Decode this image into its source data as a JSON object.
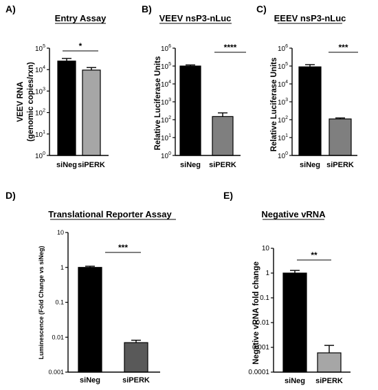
{
  "chart_data": [
    {
      "type": "bar",
      "panel": "A)",
      "title": "Entry Assay",
      "ylabel": [
        "VEEV RNA",
        "(genomic copies/rxn)"
      ],
      "categories": [
        "siNeg",
        "siPERK"
      ],
      "values": [
        25000,
        9500
      ],
      "errors_upper": [
        33000,
        12500
      ],
      "bar_colors": [
        "#000000",
        "#a6a6a6"
      ],
      "yscale": "log",
      "ylim_exp": [
        0,
        5
      ],
      "ytick_style": "power",
      "significance": "*",
      "grid": false
    },
    {
      "type": "bar",
      "panel": "B)",
      "title": "VEEV nsP3-nLuc",
      "ylabel": [
        "Relative Luciferase Units"
      ],
      "categories": [
        "siNeg",
        "siPERK"
      ],
      "values": [
        100000,
        150
      ],
      "errors_upper": [
        115000,
        240
      ],
      "bar_colors": [
        "#000000",
        "#7f7f7f"
      ],
      "yscale": "log",
      "ylim_exp": [
        0,
        6
      ],
      "ytick_style": "power",
      "significance": "****",
      "grid": false
    },
    {
      "type": "bar",
      "panel": "C)",
      "title": "EEEV nsP3-nLuc",
      "ylabel": [
        "Relative Luciferase Units"
      ],
      "categories": [
        "siNeg",
        "siPERK"
      ],
      "values": [
        90000,
        110
      ],
      "errors_upper": [
        120000,
        125
      ],
      "bar_colors": [
        "#000000",
        "#7f7f7f"
      ],
      "yscale": "log",
      "ylim_exp": [
        0,
        6
      ],
      "ytick_style": "power",
      "significance": "***",
      "grid": false
    },
    {
      "type": "bar",
      "panel": "D)",
      "title": "Translational Reporter Assay",
      "ylabel": [
        "Luminescence (Fold Change vs siNeg)"
      ],
      "categories": [
        "siNeg",
        "siPERK"
      ],
      "values": [
        1,
        0.007
      ],
      "errors_upper": [
        1.08,
        0.0082
      ],
      "bar_colors": [
        "#000000",
        "#595959"
      ],
      "yscale": "log",
      "ylim_exp": [
        -3,
        1
      ],
      "yticks": [
        "0.001",
        "0.01",
        "0.1",
        "1",
        "10"
      ],
      "significance": "***",
      "grid": false
    },
    {
      "type": "bar",
      "panel": "E)",
      "title": "Negative vRNA",
      "ylabel": [
        "Negative vRNA fold change"
      ],
      "categories": [
        "siNeg",
        "siPERK"
      ],
      "values": [
        1,
        0.0006
      ],
      "errors_upper": [
        1.28,
        0.0012
      ],
      "bar_colors": [
        "#000000",
        "#a6a6a6"
      ],
      "yscale": "log",
      "ylim_exp": [
        -4,
        1
      ],
      "yticks": [
        "0.0001",
        "0.001",
        "0.01",
        "0.1",
        "1",
        "10"
      ],
      "significance": "**",
      "grid": false
    }
  ]
}
